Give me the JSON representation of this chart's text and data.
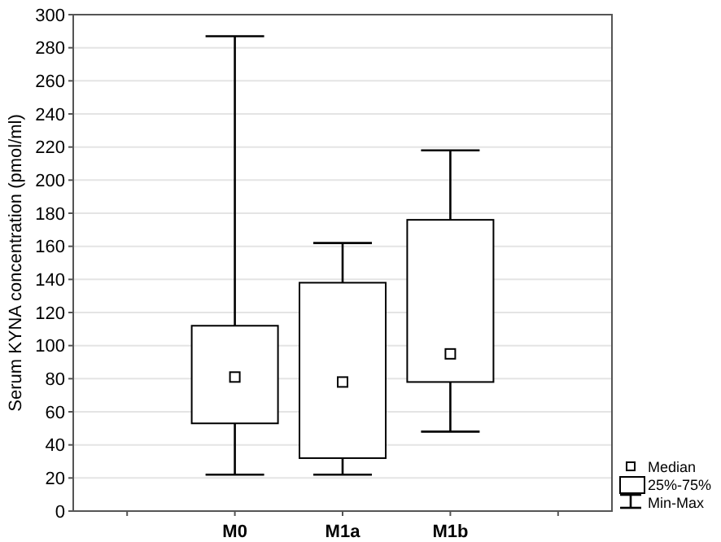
{
  "chart_data": {
    "type": "box",
    "ylabel": "Serum KYNA concentration (pmol/ml)",
    "categories": [
      null,
      "M0",
      "M1a",
      "M1b",
      null
    ],
    "boxes": [
      null,
      {
        "low": 22,
        "q1": 53,
        "median": 81,
        "q3": 112,
        "high": 287
      },
      {
        "low": 22,
        "q1": 32,
        "median": 78,
        "q3": 138,
        "high": 162
      },
      {
        "low": 48,
        "q1": 78,
        "median": 95,
        "q3": 176,
        "high": 218
      },
      null
    ],
    "ylim": [
      0,
      300
    ],
    "yticks": [
      0,
      20,
      40,
      60,
      80,
      100,
      120,
      140,
      160,
      180,
      200,
      220,
      240,
      260,
      280,
      300
    ],
    "grid": "y",
    "marker": "square",
    "color": "#ffffff",
    "annotations": [
      "Median",
      "25%-75%",
      "Min-Max"
    ]
  }
}
